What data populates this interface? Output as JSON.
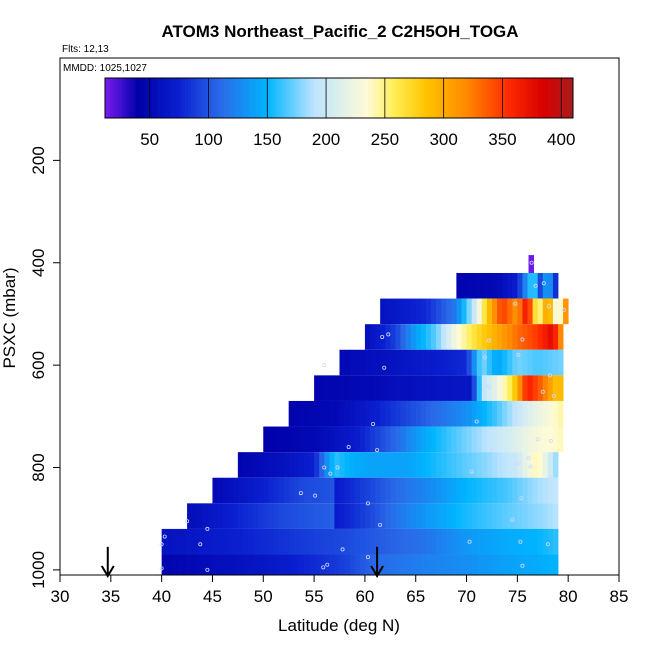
{
  "chart_data": {
    "type": "heatmap",
    "title": "ATOM3 Northeast_Pacific_2 C2H5OH_TOGA",
    "flights_label": "Flts: 12,13",
    "dates_label": "MMDD: 1025,1027",
    "xlabel": "Latitude (deg N)",
    "ylabel": "PSXC (mbar)",
    "xlim": [
      30,
      85
    ],
    "ylim": [
      1010,
      0
    ],
    "xticks": [
      30,
      35,
      40,
      45,
      50,
      55,
      60,
      65,
      70,
      75,
      80,
      85
    ],
    "yticks": [
      200,
      400,
      600,
      800,
      1000
    ],
    "colorbar": {
      "min": 12,
      "max": 410,
      "ticks": [
        50,
        100,
        150,
        200,
        250,
        300,
        350,
        400
      ],
      "colors": [
        "#7a1cf0",
        "#0000a8",
        "#0a1fd0",
        "#2a6ae8",
        "#00b4ff",
        "#bde4ff",
        "#fffbd6",
        "#ffee55",
        "#ffc400",
        "#ff8800",
        "#ff2a00",
        "#d80000",
        "#a81c1c"
      ],
      "stops": [
        12,
        40,
        75,
        110,
        150,
        190,
        235,
        258,
        285,
        320,
        355,
        385,
        410
      ]
    },
    "markers": {
      "description": "Arrows at flight boundaries",
      "latitudes": [
        34.7,
        61.2
      ]
    },
    "rows": [
      {
        "pmin": 385,
        "pmax": 420,
        "lat_start": 76.1,
        "lat_end": 76.6,
        "knots": [
          [
            76.1,
            15
          ],
          [
            76.6,
            15
          ]
        ]
      },
      {
        "pmin": 420,
        "pmax": 470,
        "lat_start": 69.0,
        "lat_end": 79.0,
        "knots": [
          [
            69.0,
            45
          ],
          [
            73.0,
            50
          ],
          [
            75.0,
            75
          ],
          [
            76.6,
            180
          ],
          [
            77.2,
            90
          ],
          [
            78.0,
            150
          ],
          [
            79.0,
            60
          ]
        ]
      },
      {
        "pmin": 470,
        "pmax": 520,
        "lat_start": 61.5,
        "lat_end": 80.0,
        "knots": [
          [
            61.5,
            60
          ],
          [
            66.0,
            80
          ],
          [
            69.0,
            120
          ],
          [
            71.0,
            210
          ],
          [
            72.0,
            280
          ],
          [
            73.5,
            350
          ],
          [
            75.0,
            310
          ],
          [
            76.0,
            380
          ],
          [
            77.0,
            230
          ],
          [
            78.0,
            320
          ],
          [
            79.0,
            200
          ],
          [
            80.0,
            350
          ]
        ]
      },
      {
        "pmin": 520,
        "pmax": 570,
        "lat_start": 60.0,
        "lat_end": 79.5,
        "knots": [
          [
            60.0,
            55
          ],
          [
            63.0,
            90
          ],
          [
            65.0,
            140
          ],
          [
            67.0,
            170
          ],
          [
            69.0,
            230
          ],
          [
            71.0,
            270
          ],
          [
            73.0,
            300
          ],
          [
            75.0,
            330
          ],
          [
            77.0,
            350
          ],
          [
            78.5,
            380
          ],
          [
            79.5,
            300
          ]
        ]
      },
      {
        "pmin": 570,
        "pmax": 620,
        "lat_start": 57.5,
        "lat_end": 79.5,
        "knots": [
          [
            57.5,
            50
          ],
          [
            62.0,
            60
          ],
          [
            66.0,
            70
          ],
          [
            70.0,
            80
          ],
          [
            71.5,
            180
          ],
          [
            73.0,
            140
          ],
          [
            75.0,
            175
          ],
          [
            77.0,
            165
          ],
          [
            79.5,
            175
          ]
        ]
      },
      {
        "pmin": 620,
        "pmax": 670,
        "lat_start": 55.0,
        "lat_end": 79.5,
        "knots": [
          [
            55.0,
            45
          ],
          [
            60.0,
            50
          ],
          [
            65.0,
            60
          ],
          [
            70.5,
            65
          ],
          [
            71.5,
            190
          ],
          [
            73.0,
            220
          ],
          [
            74.5,
            265
          ],
          [
            76.0,
            365
          ],
          [
            77.5,
            330
          ],
          [
            79.0,
            280
          ],
          [
            79.5,
            300
          ]
        ]
      },
      {
        "pmin": 670,
        "pmax": 720,
        "lat_start": 52.5,
        "lat_end": 79.5,
        "knots": [
          [
            52.5,
            45
          ],
          [
            57.0,
            50
          ],
          [
            62.0,
            80
          ],
          [
            66.0,
            105
          ],
          [
            70.0,
            130
          ],
          [
            73.0,
            165
          ],
          [
            76.0,
            210
          ],
          [
            79.5,
            245
          ]
        ]
      },
      {
        "pmin": 720,
        "pmax": 770,
        "lat_start": 50.0,
        "lat_end": 79.5,
        "knots": [
          [
            50.0,
            40
          ],
          [
            55.0,
            50
          ],
          [
            59.0,
            70
          ],
          [
            63.0,
            110
          ],
          [
            66.0,
            145
          ],
          [
            70.0,
            175
          ],
          [
            74.0,
            205
          ],
          [
            77.0,
            230
          ],
          [
            79.5,
            240
          ]
        ]
      },
      {
        "pmin": 770,
        "pmax": 820,
        "lat_start": 47.5,
        "lat_end": 79.0,
        "knots": [
          [
            47.5,
            45
          ],
          [
            52.0,
            60
          ],
          [
            55.0,
            75
          ],
          [
            57.0,
            160
          ],
          [
            59.0,
            145
          ],
          [
            61.0,
            140
          ],
          [
            64.0,
            140
          ],
          [
            68.0,
            160
          ],
          [
            72.0,
            180
          ],
          [
            75.0,
            200
          ],
          [
            77.0,
            245
          ],
          [
            79.0,
            175
          ]
        ]
      },
      {
        "pmin": 820,
        "pmax": 870,
        "lat_start": 45.0,
        "lat_end": 79.0,
        "knots": [
          [
            45.0,
            50
          ],
          [
            50.0,
            75
          ],
          [
            54.0,
            95
          ],
          [
            56.9,
            100
          ],
          [
            57.0,
            70
          ],
          [
            60.0,
            90
          ],
          [
            63.0,
            110
          ],
          [
            66.0,
            125
          ],
          [
            70.0,
            150
          ],
          [
            74.0,
            165
          ],
          [
            77.0,
            185
          ],
          [
            79.0,
            195
          ]
        ]
      },
      {
        "pmin": 870,
        "pmax": 920,
        "lat_start": 42.5,
        "lat_end": 79.0,
        "knots": [
          [
            42.5,
            55
          ],
          [
            47.0,
            75
          ],
          [
            52.0,
            95
          ],
          [
            56.9,
            105
          ],
          [
            57.0,
            70
          ],
          [
            60.0,
            90
          ],
          [
            63.0,
            115
          ],
          [
            66.0,
            135
          ],
          [
            70.0,
            155
          ],
          [
            74.0,
            170
          ],
          [
            77.0,
            180
          ],
          [
            79.0,
            190
          ]
        ]
      },
      {
        "pmin": 920,
        "pmax": 970,
        "lat_start": 40.0,
        "lat_end": 79.0,
        "knots": [
          [
            40.0,
            60
          ],
          [
            45.0,
            70
          ],
          [
            50.0,
            80
          ],
          [
            55.0,
            90
          ],
          [
            58.0,
            95
          ],
          [
            62.0,
            105
          ],
          [
            66.0,
            115
          ],
          [
            70.0,
            135
          ],
          [
            74.0,
            145
          ],
          [
            77.0,
            150
          ],
          [
            79.0,
            160
          ]
        ]
      },
      {
        "pmin": 970,
        "pmax": 1010,
        "lat_start": 40.0,
        "lat_end": 79.0,
        "knots": [
          [
            40.0,
            45
          ],
          [
            45.0,
            55
          ],
          [
            50.0,
            65
          ],
          [
            55.0,
            80
          ],
          [
            58.0,
            90
          ],
          [
            61.0,
            110
          ],
          [
            65.0,
            120
          ],
          [
            70.0,
            130
          ],
          [
            74.0,
            140
          ],
          [
            77.0,
            145
          ],
          [
            79.0,
            150
          ]
        ]
      }
    ],
    "sample_points": [
      [
        76.4,
        400
      ],
      [
        76.8,
        445
      ],
      [
        77.6,
        440
      ],
      [
        78.1,
        485
      ],
      [
        79.6,
        492
      ],
      [
        74.8,
        480
      ],
      [
        61.7,
        545
      ],
      [
        62.3,
        540
      ],
      [
        75.5,
        550
      ],
      [
        72.2,
        552
      ],
      [
        71.8,
        585
      ],
      [
        75.1,
        580
      ],
      [
        56.0,
        600
      ],
      [
        78.2,
        620
      ],
      [
        61.9,
        605
      ],
      [
        72.2,
        642
      ],
      [
        77.5,
        652
      ],
      [
        78.6,
        660
      ],
      [
        60.8,
        715
      ],
      [
        71.0,
        710
      ],
      [
        74.8,
        710
      ],
      [
        58.4,
        760
      ],
      [
        61.2,
        766
      ],
      [
        72.5,
        765
      ],
      [
        77.0,
        745
      ],
      [
        78.3,
        748
      ],
      [
        56.0,
        800
      ],
      [
        57.3,
        800
      ],
      [
        56.6,
        812
      ],
      [
        70.5,
        808
      ],
      [
        75.0,
        792
      ],
      [
        76.1,
        782
      ],
      [
        76.3,
        798
      ],
      [
        55.1,
        855
      ],
      [
        53.7,
        850
      ],
      [
        60.3,
        870
      ],
      [
        75.4,
        860
      ],
      [
        78.2,
        818
      ],
      [
        42.5,
        905
      ],
      [
        44.5,
        920
      ],
      [
        61.5,
        912
      ],
      [
        74.5,
        902
      ],
      [
        40.3,
        935
      ],
      [
        40.0,
        950
      ],
      [
        43.8,
        950
      ],
      [
        57.8,
        960
      ],
      [
        70.3,
        945
      ],
      [
        75.3,
        945
      ],
      [
        78.0,
        950
      ],
      [
        56.3,
        990
      ],
      [
        55.9,
        995
      ],
      [
        40.0,
        997
      ],
      [
        44.5,
        1000
      ],
      [
        60.3,
        975
      ],
      [
        75.5,
        992
      ]
    ]
  }
}
